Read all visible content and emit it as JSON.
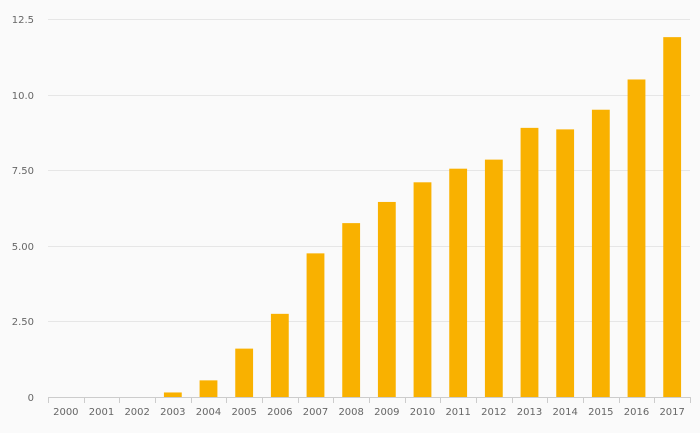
{
  "chart_data": {
    "type": "bar",
    "title": "",
    "xlabel": "",
    "ylabel": "",
    "categories": [
      "2000",
      "2001",
      "2002",
      "2003",
      "2004",
      "2005",
      "2006",
      "2007",
      "2008",
      "2009",
      "2010",
      "2011",
      "2012",
      "2013",
      "2014",
      "2015",
      "2016",
      "2017"
    ],
    "values": [
      0,
      0,
      0,
      0.15,
      0.55,
      1.6,
      2.75,
      4.75,
      5.75,
      6.45,
      7.1,
      7.55,
      7.85,
      8.9,
      8.85,
      9.5,
      10.5,
      11.9
    ],
    "ylim": [
      0,
      12.5
    ],
    "yticks": [
      0,
      2.5,
      5,
      7.5,
      10,
      12.5
    ],
    "ytick_labels": [
      "0",
      "2.50",
      "5.00",
      "7.50",
      "10.0",
      "12.5"
    ],
    "grid": true,
    "legend": "none",
    "colors": {
      "bar": "#f9b100",
      "grid": "#e6e6e6",
      "axis": "#cccccc",
      "text": "#666666",
      "background": "#fafafa"
    }
  }
}
